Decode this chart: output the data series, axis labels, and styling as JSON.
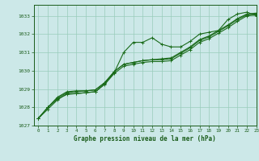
{
  "xlabel": "Graphe pression niveau de la mer (hPa)",
  "background_color": "#cce8e8",
  "grid_color": "#99ccbb",
  "line_color": "#1a6b1a",
  "text_color": "#1a5c1a",
  "ylim": [
    1027.0,
    1033.6
  ],
  "xlim": [
    -0.5,
    23
  ],
  "yticks": [
    1027,
    1028,
    1029,
    1030,
    1031,
    1032,
    1033
  ],
  "xticks": [
    0,
    1,
    2,
    3,
    4,
    5,
    6,
    7,
    8,
    9,
    10,
    11,
    12,
    13,
    14,
    15,
    16,
    17,
    18,
    19,
    20,
    21,
    22,
    23
  ],
  "series1_x": [
    0,
    1,
    2,
    3,
    4,
    5,
    6,
    7,
    8,
    9,
    10,
    11,
    12,
    13,
    14,
    15,
    16,
    17,
    18,
    19,
    20,
    21,
    22,
    23
  ],
  "series1_y": [
    1027.4,
    1027.9,
    1028.4,
    1028.75,
    1028.75,
    1028.8,
    1028.85,
    1029.3,
    1029.9,
    1031.0,
    1031.55,
    1031.55,
    1031.8,
    1031.45,
    1031.3,
    1031.3,
    1031.6,
    1032.0,
    1032.1,
    1032.2,
    1032.8,
    1033.1,
    1033.2,
    1033.0
  ],
  "series2_x": [
    0,
    1,
    2,
    3,
    4,
    5,
    6,
    7,
    8,
    9,
    10,
    11,
    12,
    13,
    14,
    15,
    16,
    17,
    18,
    19,
    20,
    21,
    22,
    23
  ],
  "series2_y": [
    1027.4,
    1028.0,
    1028.45,
    1028.7,
    1028.75,
    1028.8,
    1028.85,
    1029.25,
    1029.85,
    1030.25,
    1030.35,
    1030.45,
    1030.5,
    1030.5,
    1030.55,
    1030.85,
    1031.15,
    1031.55,
    1031.75,
    1032.05,
    1032.35,
    1032.7,
    1033.0,
    1033.05
  ],
  "series3_x": [
    0,
    1,
    2,
    3,
    4,
    5,
    6,
    7,
    8,
    9,
    10,
    11,
    12,
    13,
    14,
    15,
    16,
    17,
    18,
    19,
    20,
    21,
    22,
    23
  ],
  "series3_y": [
    1027.4,
    1028.0,
    1028.5,
    1028.8,
    1028.85,
    1028.9,
    1028.95,
    1029.35,
    1029.95,
    1030.35,
    1030.45,
    1030.55,
    1030.6,
    1030.6,
    1030.65,
    1030.95,
    1031.25,
    1031.65,
    1031.85,
    1032.15,
    1032.45,
    1032.8,
    1033.05,
    1033.1
  ],
  "series4_x": [
    0,
    1,
    2,
    3,
    4,
    5,
    6,
    7,
    8,
    9,
    10,
    11,
    12,
    13,
    14,
    15,
    16,
    17,
    18,
    19,
    20,
    21,
    22,
    23
  ],
  "series4_y": [
    1027.4,
    1028.0,
    1028.55,
    1028.85,
    1028.9,
    1028.9,
    1028.95,
    1029.35,
    1029.95,
    1030.35,
    1030.45,
    1030.55,
    1030.6,
    1030.65,
    1030.7,
    1031.0,
    1031.3,
    1031.7,
    1031.9,
    1032.2,
    1032.5,
    1032.85,
    1033.1,
    1033.15
  ]
}
